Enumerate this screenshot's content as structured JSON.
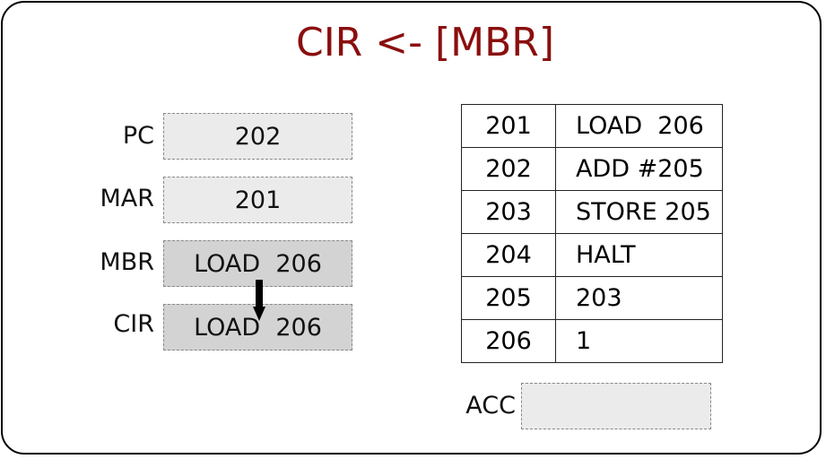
{
  "title": "CIR <- [MBR]",
  "registers": [
    {
      "label": "PC",
      "value": "202"
    },
    {
      "label": "MAR",
      "value": "201"
    },
    {
      "label": "MBR",
      "value": "LOAD  206"
    },
    {
      "label": "CIR",
      "value": "LOAD  206"
    }
  ],
  "memory": [
    {
      "address": "201",
      "content": "LOAD  206"
    },
    {
      "address": "202",
      "content": "ADD #205"
    },
    {
      "address": "203",
      "content": "STORE 205"
    },
    {
      "address": "204",
      "content": "HALT"
    },
    {
      "address": "205",
      "content": "203"
    },
    {
      "address": "206",
      "content": "1"
    }
  ],
  "acc": {
    "label": "ACC",
    "value": ""
  },
  "colors": {
    "title": "#8b0e0e",
    "register_light": "#ebebeb",
    "register_dark": "#d3d3d3"
  }
}
